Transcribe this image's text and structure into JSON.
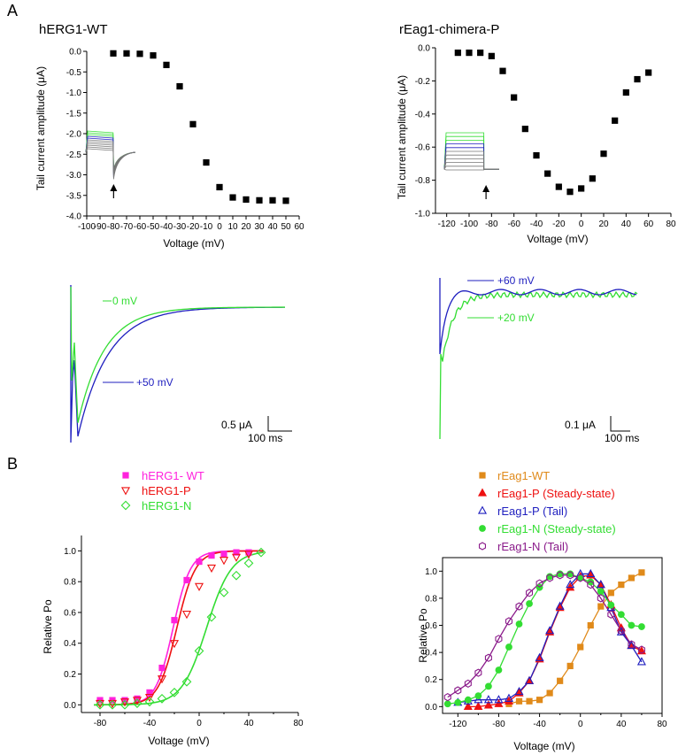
{
  "panel_labels": {
    "a": "A",
    "b": "B"
  },
  "colors": {
    "blue": "#1f1fbf",
    "green": "#33dd33",
    "magenta": "#ff22dd",
    "red": "#ee1111",
    "orange": "#e08a1a",
    "purple": "#8a1a8a",
    "black": "#000000"
  },
  "chart_data": [
    {
      "id": "hERG1-WT-tail",
      "type": "scatter",
      "title": "hERG1-WT",
      "xlabel": "Voltage (mV)",
      "ylabel": "Tail current amplitude (μA)",
      "xlim": [
        -100,
        60
      ],
      "ylim": [
        -4.0,
        0.0
      ],
      "xticks": [
        "-100",
        "-90",
        "-80",
        "-70",
        "-60",
        "-50",
        "-40",
        "-30",
        "-20",
        "-10",
        "0",
        "10",
        "20",
        "30",
        "40",
        "50",
        "60"
      ],
      "yticks": [
        "0.0",
        "-0.5",
        "-1.0",
        "-1.5",
        "-2.0",
        "-2.5",
        "-3.0",
        "-3.5",
        "-4.0"
      ],
      "x": [
        -80,
        -70,
        -60,
        -50,
        -40,
        -30,
        -20,
        -10,
        0,
        10,
        20,
        30,
        40,
        50
      ],
      "y": [
        -0.05,
        -0.05,
        -0.06,
        -0.1,
        -0.33,
        -0.85,
        -1.77,
        -2.7,
        -3.3,
        -3.55,
        -3.6,
        -3.62,
        -3.62,
        -3.63
      ]
    },
    {
      "id": "rEag1-chimera-P-tail",
      "type": "scatter",
      "title": "rEag1-chimera-P",
      "xlabel": "Voltage (mV)",
      "ylabel": "Tail current amplitude (μA)",
      "xlim": [
        -130,
        80
      ],
      "ylim": [
        -1.0,
        0.0
      ],
      "xticks": [
        "-120",
        "-100",
        "-80",
        "-60",
        "-40",
        "-20",
        "0",
        "20",
        "40",
        "60",
        "80"
      ],
      "yticks": [
        "0.0",
        "-0.2",
        "-0.4",
        "-0.6",
        "-0.8",
        "-1.0"
      ],
      "x": [
        -110,
        -100,
        -90,
        -80,
        -70,
        -60,
        -50,
        -40,
        -30,
        -20,
        -10,
        0,
        10,
        20,
        30,
        40,
        50,
        60
      ],
      "y": [
        -0.03,
        -0.03,
        -0.03,
        -0.05,
        -0.14,
        -0.3,
        -0.49,
        -0.65,
        -0.76,
        -0.84,
        -0.87,
        -0.85,
        -0.79,
        -0.64,
        -0.44,
        -0.27,
        -0.19,
        -0.15
      ]
    },
    {
      "id": "hERG1-traces",
      "type": "line",
      "annotations": [
        "0 mV",
        "+50 mV"
      ],
      "scalebar": {
        "y": "0.5 μA",
        "x": "100 ms"
      }
    },
    {
      "id": "rEag1-traces",
      "type": "line",
      "annotations": [
        "+60 mV",
        "+20 mV"
      ],
      "scalebar": {
        "y": "0.1 μA",
        "x": "100 ms"
      }
    },
    {
      "id": "hERG1-Po",
      "type": "scatter",
      "xlabel": "Voltage (mV)",
      "ylabel": "Relative Po",
      "xlim": [
        -95,
        80
      ],
      "ylim": [
        -0.05,
        1.1
      ],
      "xticks": [
        "-80",
        "-40",
        "0",
        "40",
        "80"
      ],
      "yticks": [
        "0.0",
        "0.2",
        "0.4",
        "0.6",
        "0.8",
        "1.0"
      ],
      "legend_position": "top-left",
      "series": [
        {
          "name": "hERG1- WT",
          "marker": "square",
          "color": "#ff22dd",
          "x": [
            -80,
            -70,
            -60,
            -50,
            -40,
            -30,
            -20,
            -10,
            0,
            10,
            20,
            30,
            40
          ],
          "y": [
            0.03,
            0.03,
            0.03,
            0.04,
            0.08,
            0.24,
            0.55,
            0.81,
            0.93,
            0.97,
            0.98,
            0.99,
            0.99
          ],
          "fit": {
            "v_half": -21,
            "k": 7
          }
        },
        {
          "name": "hERG1-P",
          "marker": "triangle-down-open",
          "color": "#ee1111",
          "x": [
            -80,
            -70,
            -60,
            -50,
            -40,
            -30,
            -20,
            -10,
            0,
            10,
            20,
            30,
            40
          ],
          "y": [
            0.01,
            0.01,
            0.02,
            0.03,
            0.05,
            0.17,
            0.4,
            0.59,
            0.77,
            0.89,
            0.94,
            0.96,
            0.98
          ],
          "fit": {
            "v_half": -18,
            "k": 7.5
          }
        },
        {
          "name": "hERG1-N",
          "marker": "diamond-open",
          "color": "#33dd33",
          "x": [
            -80,
            -70,
            -60,
            -50,
            -40,
            -30,
            -20,
            -10,
            0,
            10,
            20,
            30,
            40,
            50
          ],
          "y": [
            0.0,
            0.0,
            0.0,
            0.01,
            0.02,
            0.04,
            0.08,
            0.15,
            0.35,
            0.57,
            0.73,
            0.84,
            0.92,
            0.99
          ],
          "fit": {
            "v_half": 6,
            "k": 10
          }
        }
      ]
    },
    {
      "id": "rEag1-Po",
      "type": "scatter",
      "xlabel": "Voltage (mV)",
      "ylabel": "Relative Po",
      "xlim": [
        -135,
        80
      ],
      "ylim": [
        -0.05,
        1.1
      ],
      "xticks": [
        "-120",
        "-80",
        "-40",
        "0",
        "40",
        "80"
      ],
      "yticks": [
        "0.0",
        "0.2",
        "0.4",
        "0.6",
        "0.8",
        "1.0"
      ],
      "legend_position": "top-left",
      "series": [
        {
          "name": "rEag1-WT",
          "marker": "square",
          "color": "#e08a1a",
          "x": [
            -70,
            -60,
            -50,
            -40,
            -30,
            -20,
            -10,
            0,
            10,
            20,
            30,
            40,
            50,
            60
          ],
          "y": [
            0.02,
            0.04,
            0.04,
            0.05,
            0.1,
            0.19,
            0.3,
            0.44,
            0.6,
            0.74,
            0.84,
            0.9,
            0.95,
            0.99
          ]
        },
        {
          "name": "rEag1-P (Steady-state)",
          "marker": "triangle-up",
          "color": "#ee1111",
          "x": [
            -110,
            -100,
            -90,
            -80,
            -70,
            -60,
            -50,
            -40,
            -30,
            -20,
            -10,
            0,
            10,
            20,
            30,
            40,
            50,
            60
          ],
          "y": [
            0.0,
            0.0,
            0.01,
            0.02,
            0.04,
            0.1,
            0.19,
            0.35,
            0.55,
            0.73,
            0.88,
            0.96,
            0.97,
            0.9,
            0.75,
            0.58,
            0.45,
            0.41
          ]
        },
        {
          "name": "rEag1-P (Tail)",
          "marker": "triangle-up-open",
          "color": "#1f1fbf",
          "x": [
            -120,
            -110,
            -100,
            -90,
            -80,
            -70,
            -60,
            -50,
            -40,
            -30,
            -20,
            -10,
            0,
            10,
            20,
            30,
            40,
            50,
            60
          ],
          "y": [
            0.03,
            0.04,
            0.05,
            0.05,
            0.05,
            0.06,
            0.11,
            0.19,
            0.36,
            0.56,
            0.74,
            0.9,
            0.98,
            0.98,
            0.9,
            0.73,
            0.55,
            0.45,
            0.33
          ]
        },
        {
          "name": "rEag1-N (Steady-state)",
          "marker": "circle",
          "color": "#33dd33",
          "x": [
            -130,
            -120,
            -110,
            -100,
            -90,
            -80,
            -70,
            -60,
            -50,
            -40,
            -30,
            -20,
            -10,
            0,
            10,
            20,
            30,
            40,
            50,
            60
          ],
          "y": [
            0.02,
            0.03,
            0.05,
            0.08,
            0.15,
            0.27,
            0.44,
            0.61,
            0.76,
            0.88,
            0.96,
            0.98,
            0.98,
            0.95,
            0.92,
            0.85,
            0.75,
            0.68,
            0.6,
            0.59
          ]
        },
        {
          "name": "rEag1-N (Tail)",
          "marker": "hexagon-open",
          "color": "#8a1a8a",
          "x": [
            -130,
            -120,
            -110,
            -100,
            -90,
            -80,
            -70,
            -60,
            -50,
            -40,
            -30,
            -20,
            -10,
            0,
            10,
            20,
            30,
            40,
            50,
            60
          ],
          "y": [
            0.07,
            0.12,
            0.17,
            0.25,
            0.36,
            0.5,
            0.63,
            0.74,
            0.84,
            0.91,
            0.95,
            0.97,
            0.97,
            0.95,
            0.9,
            0.8,
            0.68,
            0.56,
            0.46,
            0.42
          ]
        }
      ]
    }
  ]
}
